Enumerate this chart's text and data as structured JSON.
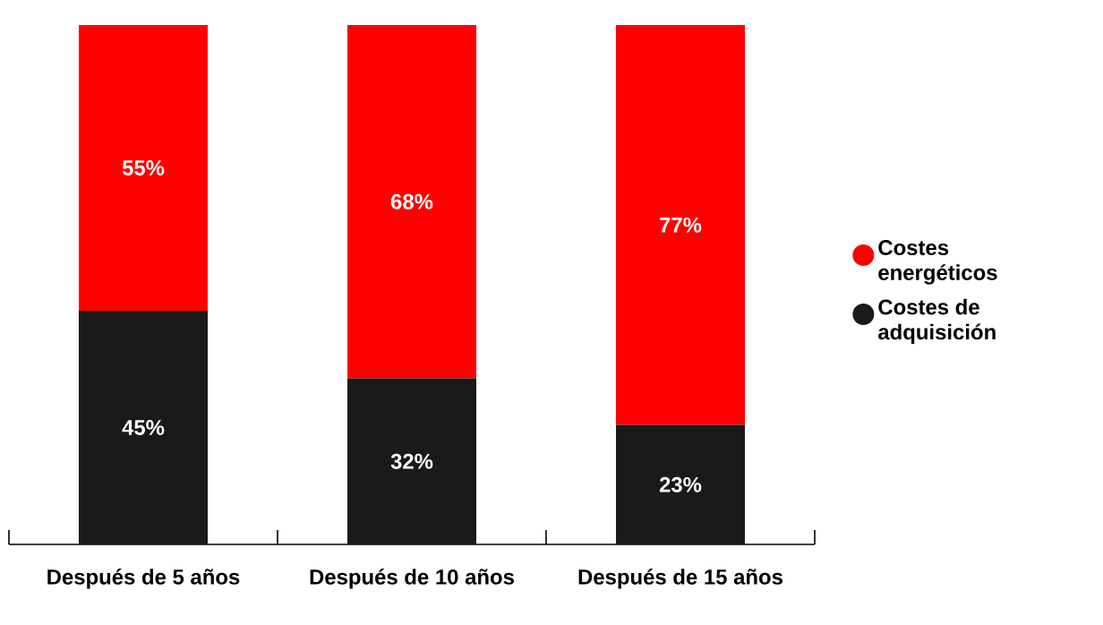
{
  "chart_data": {
    "type": "bar",
    "stacked": true,
    "legend": "right",
    "categories": [
      "Después de 5 años",
      "Después de 10 años",
      "Después de 15 años"
    ],
    "series": [
      {
        "name": "Costes de adquisición",
        "color": "#1a1a1a",
        "values": [
          45,
          32,
          23
        ],
        "value_labels": [
          "45%",
          "32%",
          "23%"
        ]
      },
      {
        "name": "Costes energéticos",
        "color": "#ff0000",
        "values": [
          55,
          68,
          77
        ],
        "value_labels": [
          "55%",
          "68%",
          "77%"
        ]
      }
    ]
  }
}
